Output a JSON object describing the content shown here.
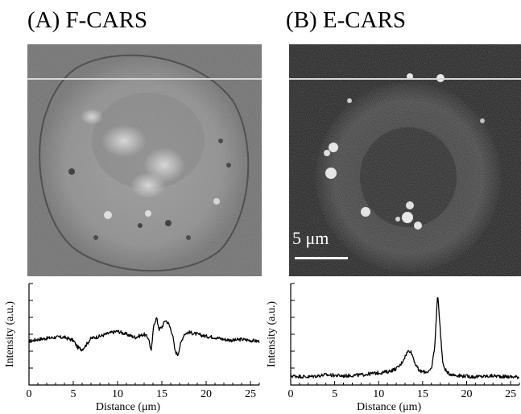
{
  "figure": {
    "panel_a_title": "(A) F-CARS",
    "panel_b_title": "(B) E-CARS",
    "scale_bar_label": "5 μm"
  },
  "chart_data": [
    {
      "type": "line",
      "panel": "A",
      "xlabel": "Distance (μm)",
      "ylabel": "Intensity (a.u.)",
      "xlim": [
        0,
        26
      ],
      "ylim": [
        0,
        1
      ],
      "x_ticks": [
        0,
        5,
        10,
        15,
        20,
        25
      ],
      "x_tick_labels": [
        "0",
        "5",
        "10",
        "15",
        "20",
        "25"
      ],
      "grid": false,
      "series": [
        {
          "x": [
            0,
            1,
            2,
            3,
            4,
            5,
            5.5,
            6,
            6.5,
            7,
            8,
            9,
            10,
            11,
            12,
            13,
            13.5,
            13.8,
            14.1,
            14.4,
            14.7,
            15,
            15.4,
            15.8,
            16.2,
            16.5,
            16.8,
            17.1,
            17.5,
            18,
            19,
            20,
            21,
            22,
            23,
            24,
            25,
            26
          ],
          "y": [
            0.43,
            0.45,
            0.46,
            0.47,
            0.47,
            0.44,
            0.37,
            0.35,
            0.4,
            0.46,
            0.48,
            0.51,
            0.53,
            0.5,
            0.47,
            0.5,
            0.46,
            0.33,
            0.6,
            0.66,
            0.55,
            0.57,
            0.64,
            0.6,
            0.5,
            0.33,
            0.3,
            0.4,
            0.5,
            0.52,
            0.5,
            0.48,
            0.47,
            0.45,
            0.44,
            0.45,
            0.44,
            0.43
          ]
        }
      ]
    },
    {
      "type": "line",
      "panel": "B",
      "xlabel": "Distance (μm)",
      "ylabel": "Intensity (a.u.)",
      "xlim": [
        0,
        26
      ],
      "ylim": [
        0,
        1
      ],
      "x_ticks": [
        0,
        5,
        10,
        15,
        20,
        25
      ],
      "x_tick_labels": [
        "0",
        "5",
        "10",
        "15",
        "20",
        "25"
      ],
      "grid": false,
      "series": [
        {
          "x": [
            0,
            2,
            4,
            6,
            8,
            10,
            11,
            12,
            12.5,
            13,
            13.3,
            13.6,
            13.9,
            14.2,
            14.6,
            15,
            15.5,
            16,
            16.4,
            16.7,
            17,
            17.3,
            17.8,
            18.5,
            19.5,
            21,
            23,
            25,
            26
          ],
          "y": [
            0.09,
            0.08,
            0.1,
            0.09,
            0.1,
            0.12,
            0.13,
            0.16,
            0.2,
            0.28,
            0.33,
            0.34,
            0.28,
            0.2,
            0.14,
            0.13,
            0.13,
            0.15,
            0.4,
            0.91,
            0.55,
            0.2,
            0.12,
            0.1,
            0.09,
            0.08,
            0.09,
            0.08,
            0.08
          ]
        }
      ]
    }
  ],
  "colors": {
    "line": "#000000",
    "scan_line": "#d8d8d8",
    "scale_bar": "#ffffff",
    "ecars_background": "#151515"
  }
}
